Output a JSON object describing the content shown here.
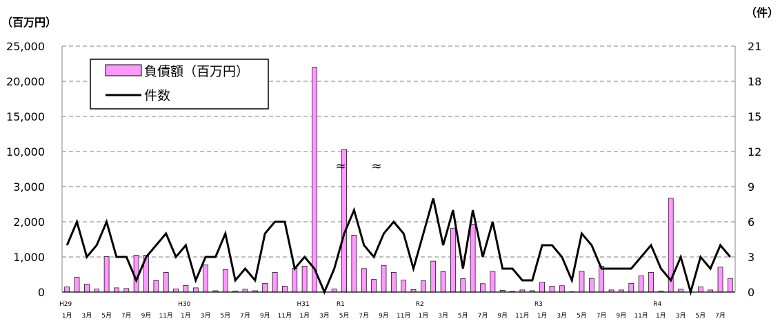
{
  "chart_data": {
    "type": "bar",
    "left_unit": "（百万円）",
    "right_unit": "（件）",
    "left_ticks": [
      "0",
      "1,000",
      "2,000",
      "3,000",
      "10,000",
      "15,000",
      "20,000",
      "25,000"
    ],
    "right_ticks": [
      "0",
      "3",
      "6",
      "9",
      "12",
      "15",
      "18",
      "21"
    ],
    "left_tick_values": [
      0,
      1000,
      2000,
      3000,
      10000,
      15000,
      20000,
      25000
    ],
    "x_labels": [
      "1月",
      "",
      "3月",
      "",
      "5月",
      "",
      "7月",
      "",
      "9月",
      "",
      "11月",
      "",
      "1月",
      "",
      "3月",
      "",
      "5月",
      "",
      "7月",
      "",
      "9月",
      "",
      "11月",
      "",
      "1月",
      "",
      "3月",
      "",
      "5月",
      "",
      "7月",
      "",
      "9月",
      "",
      "11月",
      "",
      "1月",
      "",
      "3月",
      "",
      "5月",
      "",
      "7月",
      "",
      "9月",
      "",
      "11月",
      "",
      "1月",
      "",
      "3月",
      "",
      "5月",
      "",
      "7月",
      "",
      "9月",
      "",
      "11月",
      "",
      "1月",
      "",
      "3月",
      "",
      "5月",
      "",
      "7月",
      ""
    ],
    "era_labels": [
      {
        "index": 0,
        "text": "H29"
      },
      {
        "index": 12,
        "text": "H30"
      },
      {
        "index": 24,
        "text": "H31"
      },
      {
        "index": 28,
        "text": "R1"
      },
      {
        "index": 36,
        "text": "R2"
      },
      {
        "index": 48,
        "text": "R3"
      },
      {
        "index": 60,
        "text": "R4"
      }
    ],
    "break_symbols": [
      "≈",
      "≈"
    ],
    "series": [
      {
        "name": "負債額（百万円）",
        "kind": "bar",
        "color": "#ff99ff",
        "values": [
          150,
          420,
          230,
          90,
          1010,
          120,
          100,
          1050,
          1050,
          330,
          560,
          90,
          190,
          120,
          770,
          40,
          640,
          30,
          80,
          40,
          250,
          560,
          170,
          680,
          740,
          22000,
          0,
          90,
          10300,
          1620,
          670,
          360,
          760,
          560,
          340,
          70,
          320,
          880,
          580,
          1820,
          380,
          1930,
          240,
          590,
          50,
          20,
          60,
          40,
          280,
          170,
          180,
          10,
          590,
          390,
          740,
          60,
          60,
          250,
          460,
          560,
          30,
          2670,
          80,
          0,
          150,
          60,
          710,
          390
        ]
      },
      {
        "name": "件数",
        "kind": "line",
        "color": "#000000",
        "values": [
          4,
          6,
          3,
          4,
          6,
          3,
          3,
          1,
          3,
          4,
          5,
          3,
          4,
          1,
          3,
          3,
          5,
          1,
          2,
          1,
          5,
          6,
          6,
          2,
          3,
          2,
          0,
          2,
          5,
          7,
          4,
          3,
          5,
          6,
          5,
          2,
          5,
          8,
          4,
          7,
          2,
          7,
          3,
          6,
          2,
          2,
          1,
          1,
          4,
          4,
          3,
          1,
          5,
          4,
          2,
          2,
          2,
          2,
          3,
          4,
          2,
          1,
          3,
          0,
          3,
          2,
          4,
          3
        ]
      }
    ]
  }
}
